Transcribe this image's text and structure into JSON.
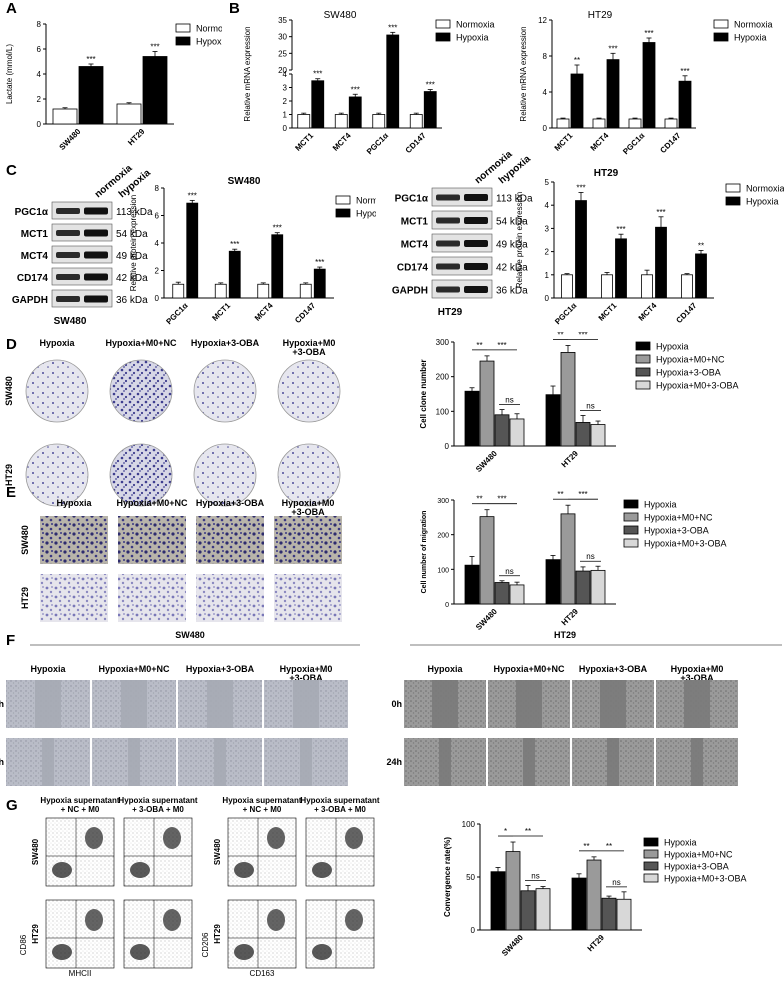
{
  "panels": {
    "A": "A",
    "B": "B",
    "C": "C",
    "D": "D",
    "E": "E",
    "F": "F",
    "G": "G"
  },
  "colors": {
    "black": "#000000",
    "gray1": "#9a9a9a",
    "gray2": "#555555",
    "gray3": "#d8d8d8",
    "white": "#ffffff",
    "stain": "#3e3d8e"
  },
  "legend_norm": [
    "Normoxia",
    "Hypoxia"
  ],
  "legend_treat": [
    "Hypoxia",
    "Hypoxia+M0+NC",
    "Hypoxia+3-OBA",
    "Hypoxia+M0+3-OBA"
  ],
  "western": {
    "sw480": {
      "cols": [
        "normoxia",
        "hypoxia"
      ],
      "rows": [
        "PGC1α",
        "MCT1",
        "MCT4",
        "CD174",
        "GAPDH"
      ],
      "kda": [
        "113 kDa",
        "54 kDa",
        "49 kDa",
        "42 kDa",
        "36 kDa"
      ],
      "label": "SW480"
    },
    "ht29": {
      "cols": [
        "normoxia",
        "hypoxia"
      ],
      "rows": [
        "PGC1α",
        "MCT1",
        "MCT4",
        "CD174",
        "GAPDH"
      ],
      "kda": [
        "113 kDa",
        "54 kDa",
        "49 kDa",
        "42 kDa",
        "36 kDa"
      ],
      "label": "HT29"
    }
  },
  "panel_d": {
    "cols": [
      "Hypoxia",
      "Hypoxia+M0+NC",
      "Hypoxia+3-OBA",
      "Hypoxia+M0\n+3-OBA"
    ],
    "rows": [
      "SW480",
      "HT29"
    ]
  },
  "panel_e": {
    "cols": [
      "Hypoxia",
      "Hypoxia+M0+NC",
      "Hypoxia+3-OBA",
      "Hypoxia+M0\n+3-OBA"
    ],
    "rows": [
      "SW480",
      "HT29"
    ]
  },
  "panel_f": {
    "groups": [
      "SW480",
      "HT29"
    ],
    "cols": [
      "Hypoxia",
      "Hypoxia+M0+NC",
      "Hypoxia+3-OBA",
      "Hypoxia+M0\n+3-OBA"
    ],
    "rows": [
      "0h",
      "24h"
    ]
  },
  "panel_g": {
    "cols": [
      "Hypoxia supernatant\n+ NC + M0",
      "Hypoxia supernatant\n+ 3-OBA + M0",
      "Hypoxia supernatant\n+ NC + M0",
      "Hypoxia supernatant\n+ 3-OBA + M0"
    ],
    "rows": [
      "SW480",
      "HT29"
    ],
    "xaxes": [
      "MHCII",
      "CD163"
    ],
    "yaxes": [
      "CD86",
      "CD206"
    ]
  },
  "chart_data": [
    {
      "id": "A",
      "type": "bar",
      "categories": [
        "SW480",
        "HT29"
      ],
      "series": [
        {
          "name": "Normoxia",
          "values": [
            1.2,
            1.6
          ]
        },
        {
          "name": "Hypoxia",
          "values": [
            4.6,
            5.4
          ]
        }
      ],
      "errors": [
        [
          0.1,
          0.1
        ],
        [
          0.2,
          0.4
        ]
      ],
      "sig": [
        "***",
        "***"
      ],
      "ylabel": "Lactate (mmol/L)",
      "ylim": [
        0,
        8
      ],
      "yticks": [
        0,
        2,
        4,
        6,
        8
      ]
    },
    {
      "id": "B1",
      "type": "bar",
      "title": "SW480",
      "categories": [
        "MCT1",
        "MCT4",
        "PGC1α",
        "CD147"
      ],
      "series": [
        {
          "name": "Normoxia",
          "values": [
            1,
            1,
            1,
            1
          ]
        },
        {
          "name": "Hypoxia",
          "values": [
            3.5,
            2.3,
            30.5,
            2.7
          ]
        }
      ],
      "errors": [
        [
          0.1,
          0.1,
          0.1,
          0.1
        ],
        [
          0.15,
          0.2,
          0.8,
          0.15
        ]
      ],
      "sig": [
        "***",
        "***",
        "***",
        "***"
      ],
      "ylabel": "Relative mRNA expression",
      "ylim": [
        0,
        35
      ],
      "yticks": [
        0,
        1,
        2,
        3,
        4,
        20,
        25,
        30,
        35
      ],
      "broken_axis": [
        4,
        20
      ]
    },
    {
      "id": "B2",
      "type": "bar",
      "title": "HT29",
      "categories": [
        "MCT1",
        "MCT4",
        "PGC1α",
        "CD147"
      ],
      "series": [
        {
          "name": "Normoxia",
          "values": [
            1,
            1,
            1,
            1
          ]
        },
        {
          "name": "Hypoxia",
          "values": [
            6.0,
            7.6,
            9.5,
            5.2
          ]
        }
      ],
      "errors": [
        [
          0.1,
          0.1,
          0.1,
          0.1
        ],
        [
          1.0,
          0.7,
          0.5,
          0.6
        ]
      ],
      "sig": [
        "**",
        "***",
        "***",
        "***"
      ],
      "ylabel": "Relative mRNA expression",
      "ylim": [
        0,
        12
      ],
      "yticks": [
        0,
        4,
        8,
        12
      ]
    },
    {
      "id": "C1",
      "type": "bar",
      "title": "SW480",
      "categories": [
        "PGC1α",
        "MCT1",
        "MCT4",
        "CD147"
      ],
      "series": [
        {
          "name": "Normoxia",
          "values": [
            1,
            1,
            1,
            1
          ]
        },
        {
          "name": "Hypoxia",
          "values": [
            6.9,
            3.4,
            4.6,
            2.1
          ]
        }
      ],
      "errors": [
        [
          0.15,
          0.1,
          0.1,
          0.1
        ],
        [
          0.2,
          0.15,
          0.15,
          0.15
        ]
      ],
      "sig": [
        "***",
        "***",
        "***",
        "***"
      ],
      "ylabel": "Relative protein expression",
      "ylim": [
        0,
        8
      ],
      "yticks": [
        0,
        2,
        4,
        6,
        8
      ]
    },
    {
      "id": "C2",
      "type": "bar",
      "title": "HT29",
      "categories": [
        "PGC1α",
        "MCT1",
        "MCT4",
        "CD147"
      ],
      "series": [
        {
          "name": "Normoxia",
          "values": [
            1,
            1,
            1,
            1
          ]
        },
        {
          "name": "Hypoxia",
          "values": [
            4.2,
            2.55,
            3.05,
            1.9
          ]
        }
      ],
      "errors": [
        [
          0.05,
          0.1,
          0.2,
          0.05
        ],
        [
          0.35,
          0.2,
          0.45,
          0.15
        ]
      ],
      "sig": [
        "***",
        "***",
        "***",
        "**"
      ],
      "ylabel": "Relative protein expression",
      "ylim": [
        0,
        5
      ],
      "yticks": [
        0,
        1,
        2,
        3,
        4,
        5
      ]
    },
    {
      "id": "D",
      "type": "bar",
      "categories": [
        "SW480",
        "HT29"
      ],
      "series": [
        {
          "name": "Hypoxia",
          "values": [
            158,
            148
          ]
        },
        {
          "name": "Hypoxia+M0+NC",
          "values": [
            245,
            270
          ]
        },
        {
          "name": "Hypoxia+3-OBA",
          "values": [
            90,
            68
          ]
        },
        {
          "name": "Hypoxia+M0+3-OBA",
          "values": [
            78,
            62
          ]
        }
      ],
      "errors": [
        [
          10,
          25
        ],
        [
          15,
          20
        ],
        [
          15,
          20
        ],
        [
          15,
          10
        ]
      ],
      "sig": [
        [
          "**",
          "***",
          "ns"
        ],
        [
          "**",
          "***",
          "ns"
        ]
      ],
      "ylabel": "Cell clone number",
      "ylim": [
        0,
        300
      ],
      "yticks": [
        0,
        100,
        200,
        300
      ]
    },
    {
      "id": "E",
      "type": "bar",
      "categories": [
        "SW480",
        "HT29"
      ],
      "series": [
        {
          "name": "Hypoxia",
          "values": [
            112,
            128
          ]
        },
        {
          "name": "Hypoxia+M0+NC",
          "values": [
            252,
            260
          ]
        },
        {
          "name": "Hypoxia+3-OBA",
          "values": [
            62,
            95
          ]
        },
        {
          "name": "Hypoxia+M0+3-OBA",
          "values": [
            55,
            97
          ]
        }
      ],
      "errors": [
        [
          25,
          12
        ],
        [
          20,
          25
        ],
        [
          5,
          12
        ],
        [
          8,
          12
        ]
      ],
      "sig": [
        [
          "**",
          "***",
          "ns"
        ],
        [
          "**",
          "***",
          "ns"
        ]
      ],
      "ylabel": "Cell number of migration",
      "ylim": [
        0,
        300
      ],
      "yticks": [
        0,
        100,
        200,
        300
      ]
    },
    {
      "id": "G",
      "type": "bar",
      "categories": [
        "SW480",
        "HT29"
      ],
      "series": [
        {
          "name": "Hypoxia",
          "values": [
            55,
            49
          ]
        },
        {
          "name": "Hypoxia+M0+NC",
          "values": [
            74,
            66
          ]
        },
        {
          "name": "Hypoxia+3-OBA",
          "values": [
            37,
            30
          ]
        },
        {
          "name": "Hypoxia+M0+3-OBA",
          "values": [
            39,
            29
          ]
        }
      ],
      "errors": [
        [
          4,
          4
        ],
        [
          9,
          3
        ],
        [
          5,
          2
        ],
        [
          2,
          7
        ]
      ],
      "sig": [
        [
          "*",
          "**",
          "ns"
        ],
        [
          "**",
          "**",
          "ns"
        ]
      ],
      "ylabel": "Convergence rate(%)",
      "ylim": [
        0,
        100
      ],
      "yticks": [
        0,
        50,
        100
      ]
    }
  ]
}
